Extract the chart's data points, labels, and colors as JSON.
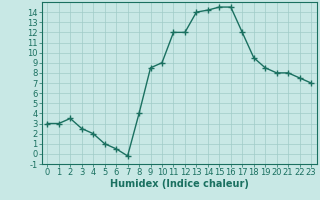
{
  "x": [
    0,
    1,
    2,
    3,
    4,
    5,
    6,
    7,
    8,
    9,
    10,
    11,
    12,
    13,
    14,
    15,
    16,
    17,
    18,
    19,
    20,
    21,
    22,
    23
  ],
  "y": [
    3,
    3,
    3.5,
    2.5,
    2,
    1,
    0.5,
    -0.2,
    4,
    8.5,
    9,
    12,
    12,
    14,
    14.2,
    14.5,
    14.5,
    12,
    9.5,
    8.5,
    8,
    8,
    7.5,
    7
  ],
  "line_color": "#1a7060",
  "marker_color": "#1a7060",
  "bg_color": "#c8e8e5",
  "grid_color": "#a0ccc8",
  "xlabel": "Humidex (Indice chaleur)",
  "xlim": [
    -0.5,
    23.5
  ],
  "ylim": [
    -1,
    15
  ],
  "yticks": [
    -1,
    0,
    1,
    2,
    3,
    4,
    5,
    6,
    7,
    8,
    9,
    10,
    11,
    12,
    13,
    14
  ],
  "xticks": [
    0,
    1,
    2,
    3,
    4,
    5,
    6,
    7,
    8,
    9,
    10,
    11,
    12,
    13,
    14,
    15,
    16,
    17,
    18,
    19,
    20,
    21,
    22,
    23
  ],
  "axis_color": "#1a7060",
  "tick_color": "#1a7060",
  "font_size": 6,
  "xlabel_fontsize": 7,
  "marker_size": 4,
  "line_width": 1.0
}
